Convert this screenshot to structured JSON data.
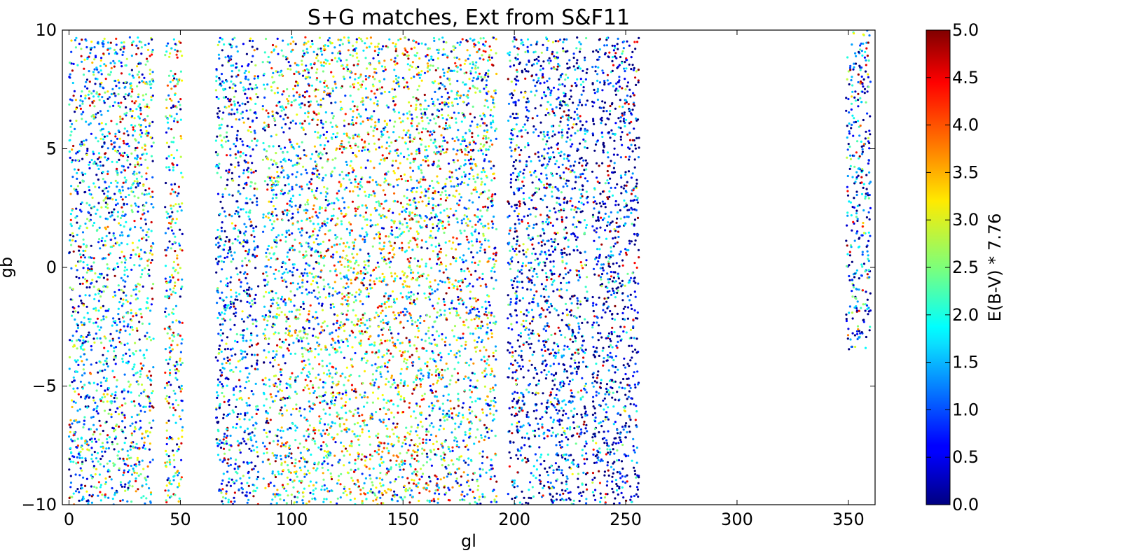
{
  "chart_data": {
    "type": "scatter",
    "title": "S+G matches, Ext from S&F11",
    "xlabel": "gl",
    "ylabel": "gb",
    "xlim": [
      -3,
      362
    ],
    "ylim": [
      -10,
      10
    ],
    "x_ticks": [
      0,
      50,
      100,
      150,
      200,
      250,
      300,
      350
    ],
    "y_ticks": [
      -10,
      -5,
      0,
      5,
      10
    ],
    "x_tick_labels": [
      "0",
      "50",
      "100",
      "150",
      "200",
      "250",
      "300",
      "350"
    ],
    "y_tick_labels": [
      "−10",
      "−5",
      "0",
      "5",
      "10"
    ],
    "grid": false,
    "colormap": "jet",
    "color_value_label": "E(B-V) * 7.76",
    "colorbar_range": [
      0.0,
      5.0
    ],
    "colorbar_ticks": [
      0.0,
      0.5,
      1.0,
      1.5,
      2.0,
      2.5,
      3.0,
      3.5,
      4.0,
      4.5,
      5.0
    ],
    "colorbar_tick_labels": [
      "0.0",
      "0.5",
      "1.0",
      "1.5",
      "2.0",
      "2.5",
      "3.0",
      "3.5",
      "4.0",
      "4.5",
      "5.0"
    ],
    "point_regions": [
      {
        "gl_range": [
          0,
          28
        ],
        "gb_range": [
          -10,
          9.7
        ],
        "mean_color": 1.5
      },
      {
        "gl_range": [
          28,
          38
        ],
        "gb_range": [
          -10,
          9.7
        ],
        "mean_color": 2.0
      },
      {
        "gl_range": [
          43,
          51
        ],
        "gb_range": [
          -10,
          9.7
        ],
        "mean_color": 2.0
      },
      {
        "gl_range": [
          66,
          85
        ],
        "gb_range": [
          -10,
          9.7
        ],
        "mean_color": 1.2
      },
      {
        "gl_range": [
          87,
          120
        ],
        "gb_range": [
          -10,
          9.7
        ],
        "mean_color": 2.0
      },
      {
        "gl_range": [
          120,
          160
        ],
        "gb_range": [
          -10,
          9.7
        ],
        "mean_color": 2.5
      },
      {
        "gl_range": [
          160,
          192
        ],
        "gb_range": [
          -10,
          9.7
        ],
        "mean_color": 2.0
      },
      {
        "gl_range": [
          197,
          233
        ],
        "gb_range": [
          -10,
          9.7
        ],
        "mean_color": 0.8
      },
      {
        "gl_range": [
          235,
          256
        ],
        "gb_range": [
          -10,
          9.7
        ],
        "mean_color": 0.5
      },
      {
        "gl_range": [
          349,
          360
        ],
        "gb_range": [
          -3.5,
          10
        ],
        "mean_color": 1.0
      }
    ]
  }
}
